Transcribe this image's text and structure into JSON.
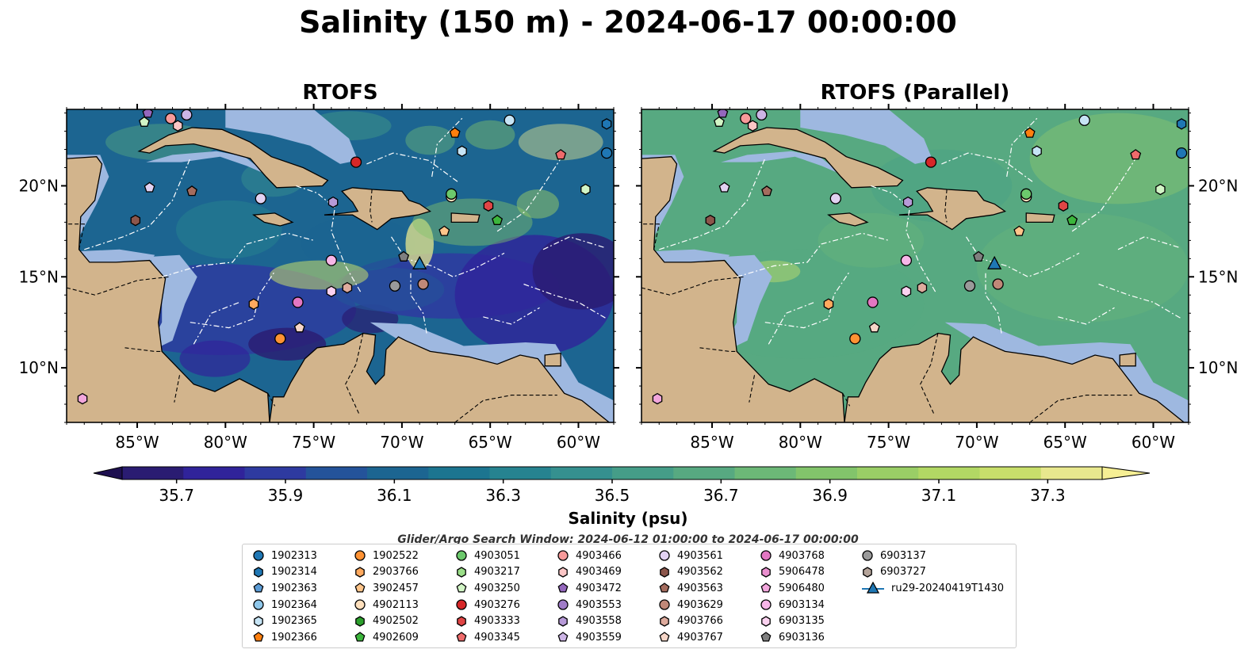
{
  "title": "Salinity (150 m) - 2024-06-17 00:00:00",
  "panels": [
    {
      "title": "RTOFS"
    },
    {
      "title": "RTOFS (Parallel)"
    }
  ],
  "axes": {
    "lon_ticks": [
      -85,
      -80,
      -75,
      -70,
      -65,
      -60
    ],
    "lon_labels": [
      "85°W",
      "80°W",
      "75°W",
      "70°W",
      "65°W",
      "60°W"
    ],
    "lat_ticks": [
      10,
      15,
      20
    ],
    "lat_labels": [
      "10°N",
      "15°N",
      "20°N"
    ],
    "lon_range": [
      -89,
      -58
    ],
    "lat_range": [
      7,
      24.2
    ]
  },
  "colorbar": {
    "label": "Salinity (psu)",
    "range": [
      35.6,
      37.4
    ],
    "step": 0.1,
    "tick_values": [
      35.7,
      35.9,
      36.1,
      36.3,
      36.5,
      36.7,
      36.9,
      37.1,
      37.3
    ],
    "tick_labels": [
      "35.7",
      "35.9",
      "36.1",
      "36.3",
      "36.5",
      "36.7",
      "36.9",
      "37.1",
      "37.3"
    ],
    "colors": [
      "#2a1c72",
      "#30239a",
      "#2e3aa0",
      "#24539a",
      "#1c6591",
      "#1c7590",
      "#268390",
      "#35908f",
      "#459d88",
      "#57a981",
      "#6cb877",
      "#82c46b",
      "#9ace66",
      "#b2d864",
      "#c8df6b",
      "#e8e88e"
    ],
    "extend_low": "#1e1050",
    "extend_high": "#f6ef94"
  },
  "search_window": "Glider/Argo Search Window: 2024-06-12 01:00:00 to 2024-06-17 00:00:00",
  "colors": {
    "land": "#d2b48c",
    "shallow": "#9eb8e0",
    "deep": "#241560",
    "eez": "#ffffff"
  },
  "legend": [
    {
      "label": "1902313",
      "color": "#1f77b4",
      "shape": "circle"
    },
    {
      "label": "1902314",
      "color": "#1f77b4",
      "shape": "hexagon"
    },
    {
      "label": "1902363",
      "color": "#5b9bd5",
      "shape": "pentagon"
    },
    {
      "label": "1902364",
      "color": "#8fc7ea",
      "shape": "circle"
    },
    {
      "label": "1902365",
      "color": "#c6e4f5",
      "shape": "hexagon"
    },
    {
      "label": "1902366",
      "color": "#ff7f0e",
      "shape": "pentagon"
    },
    {
      "label": "1902522",
      "color": "#ff9233",
      "shape": "circle"
    },
    {
      "label": "2903766",
      "color": "#ffa95e",
      "shape": "hexagon"
    },
    {
      "label": "3902457",
      "color": "#ffc58a",
      "shape": "pentagon"
    },
    {
      "label": "4902113",
      "color": "#ffe0bd",
      "shape": "circle"
    },
    {
      "label": "4902502",
      "color": "#2ca02c",
      "shape": "hexagon"
    },
    {
      "label": "4902609",
      "color": "#3cb63c",
      "shape": "pentagon"
    },
    {
      "label": "4903051",
      "color": "#6cc96c",
      "shape": "circle"
    },
    {
      "label": "4903217",
      "color": "#9ade88",
      "shape": "hexagon"
    },
    {
      "label": "4903250",
      "color": "#d2f5c6",
      "shape": "pentagon"
    },
    {
      "label": "4903276",
      "color": "#d62728",
      "shape": "circle"
    },
    {
      "label": "4903333",
      "color": "#e04545",
      "shape": "hexagon"
    },
    {
      "label": "4903345",
      "color": "#ef6b6b",
      "shape": "pentagon"
    },
    {
      "label": "4903466",
      "color": "#f79a9a",
      "shape": "circle"
    },
    {
      "label": "4903469",
      "color": "#fcc6c6",
      "shape": "hexagon"
    },
    {
      "label": "4903472",
      "color": "#9467bd",
      "shape": "pentagon"
    },
    {
      "label": "4903553",
      "color": "#a07cc8",
      "shape": "circle"
    },
    {
      "label": "4903558",
      "color": "#b79ad8",
      "shape": "hexagon"
    },
    {
      "label": "4903559",
      "color": "#cdb5e6",
      "shape": "pentagon"
    },
    {
      "label": "4903561",
      "color": "#e2d2f2",
      "shape": "circle"
    },
    {
      "label": "4903562",
      "color": "#8c564b",
      "shape": "hexagon"
    },
    {
      "label": "4903563",
      "color": "#a46c5e",
      "shape": "pentagon"
    },
    {
      "label": "4903629",
      "color": "#c08878",
      "shape": "circle"
    },
    {
      "label": "4903766",
      "color": "#deab9d",
      "shape": "hexagon"
    },
    {
      "label": "4903767",
      "color": "#f6d6c8",
      "shape": "pentagon"
    },
    {
      "label": "4903768",
      "color": "#e377c2",
      "shape": "circle"
    },
    {
      "label": "5906478",
      "color": "#ea8fcf",
      "shape": "hexagon"
    },
    {
      "label": "5906480",
      "color": "#f2a6dc",
      "shape": "pentagon"
    },
    {
      "label": "6903134",
      "color": "#f7b6e8",
      "shape": "circle"
    },
    {
      "label": "6903135",
      "color": "#fbd2f0",
      "shape": "hexagon"
    },
    {
      "label": "6903136",
      "color": "#7f7f7f",
      "shape": "pentagon"
    },
    {
      "label": "6903137",
      "color": "#9a9a9a",
      "shape": "circle"
    },
    {
      "label": "6903727",
      "color": "#b5a49a",
      "shape": "hexagon"
    },
    {
      "label": "ru29-20240419T1430",
      "color": "#1f77b4",
      "shape": "glider"
    }
  ],
  "markers": [
    {
      "lon": -84.4,
      "lat": 24.0,
      "color": "#9467bd",
      "shape": "pentagon"
    },
    {
      "lon": -84.6,
      "lat": 23.5,
      "color": "#d2f5c6",
      "shape": "pentagon"
    },
    {
      "lon": -83.1,
      "lat": 23.7,
      "color": "#f79a9a",
      "shape": "circle"
    },
    {
      "lon": -82.7,
      "lat": 23.3,
      "color": "#fcc6c6",
      "shape": "hexagon"
    },
    {
      "lon": -82.2,
      "lat": 23.9,
      "color": "#cdb5e6",
      "shape": "circle"
    },
    {
      "lon": -84.3,
      "lat": 19.9,
      "color": "#e2d2f2",
      "shape": "pentagon"
    },
    {
      "lon": -81.9,
      "lat": 19.7,
      "color": "#a46c5e",
      "shape": "pentagon"
    },
    {
      "lon": -85.1,
      "lat": 18.1,
      "color": "#8c564b",
      "shape": "hexagon"
    },
    {
      "lon": -78.0,
      "lat": 19.3,
      "color": "#e2d2f2",
      "shape": "circle"
    },
    {
      "lon": -72.6,
      "lat": 21.3,
      "color": "#d62728",
      "shape": "circle"
    },
    {
      "lon": -73.9,
      "lat": 19.1,
      "color": "#b79ad8",
      "shape": "hexagon"
    },
    {
      "lon": -63.9,
      "lat": 23.6,
      "color": "#c6e4f5",
      "shape": "circle"
    },
    {
      "lon": -67.0,
      "lat": 22.9,
      "color": "#ff7f0e",
      "shape": "pentagon"
    },
    {
      "lon": -66.6,
      "lat": 21.9,
      "color": "#c6e4f5",
      "shape": "hexagon"
    },
    {
      "lon": -61.0,
      "lat": 21.7,
      "color": "#ef6b6b",
      "shape": "pentagon"
    },
    {
      "lon": -58.4,
      "lat": 23.4,
      "color": "#1f77b4",
      "shape": "hexagon"
    },
    {
      "lon": -58.4,
      "lat": 21.8,
      "color": "#1f77b4",
      "shape": "circle"
    },
    {
      "lon": -59.6,
      "lat": 19.8,
      "color": "#d2f5c6",
      "shape": "hexagon"
    },
    {
      "lon": -67.2,
      "lat": 19.4,
      "color": "#ffe0bd",
      "shape": "circle"
    },
    {
      "lon": -67.2,
      "lat": 19.55,
      "color": "#6cc96c",
      "shape": "circle"
    },
    {
      "lon": -65.1,
      "lat": 18.9,
      "color": "#e04545",
      "shape": "hexagon"
    },
    {
      "lon": -64.6,
      "lat": 18.1,
      "color": "#3cb63c",
      "shape": "pentagon"
    },
    {
      "lon": -67.6,
      "lat": 17.5,
      "color": "#ffc58a",
      "shape": "pentagon"
    },
    {
      "lon": -74.0,
      "lat": 15.9,
      "color": "#f7b6e8",
      "shape": "circle"
    },
    {
      "lon": -69.9,
      "lat": 16.1,
      "color": "#7f7f7f",
      "shape": "pentagon"
    },
    {
      "lon": -68.8,
      "lat": 14.6,
      "color": "#c08878",
      "shape": "circle"
    },
    {
      "lon": -70.4,
      "lat": 14.5,
      "color": "#9a9a9a",
      "shape": "circle"
    },
    {
      "lon": -73.1,
      "lat": 14.4,
      "color": "#deab9d",
      "shape": "hexagon"
    },
    {
      "lon": -74.0,
      "lat": 14.2,
      "color": "#fbd2f0",
      "shape": "hexagon"
    },
    {
      "lon": -75.9,
      "lat": 13.6,
      "color": "#e377c2",
      "shape": "circle"
    },
    {
      "lon": -78.4,
      "lat": 13.5,
      "color": "#ffa95e",
      "shape": "hexagon"
    },
    {
      "lon": -75.8,
      "lat": 12.2,
      "color": "#f6d6c8",
      "shape": "pentagon"
    },
    {
      "lon": -76.9,
      "lat": 11.6,
      "color": "#ff9233",
      "shape": "circle"
    },
    {
      "lon": -88.1,
      "lat": 8.3,
      "color": "#f2a6dc",
      "shape": "hexagon"
    }
  ],
  "glider": {
    "lon": -69.0,
    "lat": 15.7,
    "color": "#1f77b4"
  }
}
